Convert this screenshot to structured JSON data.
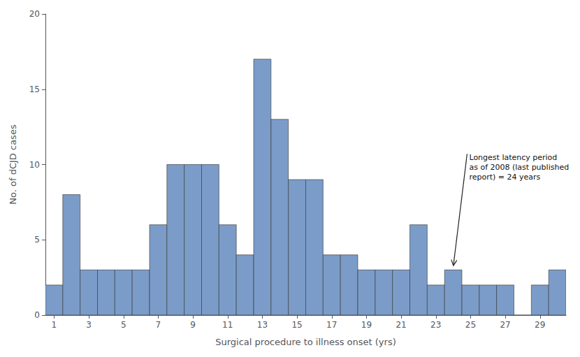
{
  "chart_data": {
    "type": "bar",
    "x": [
      1,
      2,
      3,
      4,
      5,
      6,
      7,
      8,
      9,
      10,
      11,
      12,
      13,
      14,
      15,
      16,
      17,
      18,
      19,
      20,
      21,
      22,
      23,
      24,
      25,
      26,
      27,
      28,
      29,
      30
    ],
    "values": [
      2,
      8,
      3,
      3,
      3,
      3,
      6,
      10,
      10,
      10,
      6,
      4,
      17,
      13,
      9,
      9,
      4,
      4,
      3,
      3,
      3,
      6,
      2,
      3,
      2,
      2,
      2,
      0,
      2,
      3
    ],
    "color": "#7B9CC8",
    "xlabel": "Surgical procedure to illness onset (yrs)",
    "ylabel": "No. of dCJD cases",
    "xlim": [
      0.5,
      30.5
    ],
    "xticks": [
      1,
      3,
      5,
      7,
      9,
      11,
      13,
      15,
      17,
      19,
      21,
      23,
      25,
      27,
      29
    ],
    "ylim": [
      0,
      20
    ],
    "yticks": [
      0,
      5,
      10,
      15,
      20
    ],
    "grid": false,
    "annotations": [
      {
        "text": "Longest latency period\nas of 2008 (last published\nreport) = 24 years",
        "xy": [
          24.0,
          3.2
        ],
        "text_xy": [
          24.8,
          10.8
        ]
      }
    ]
  }
}
